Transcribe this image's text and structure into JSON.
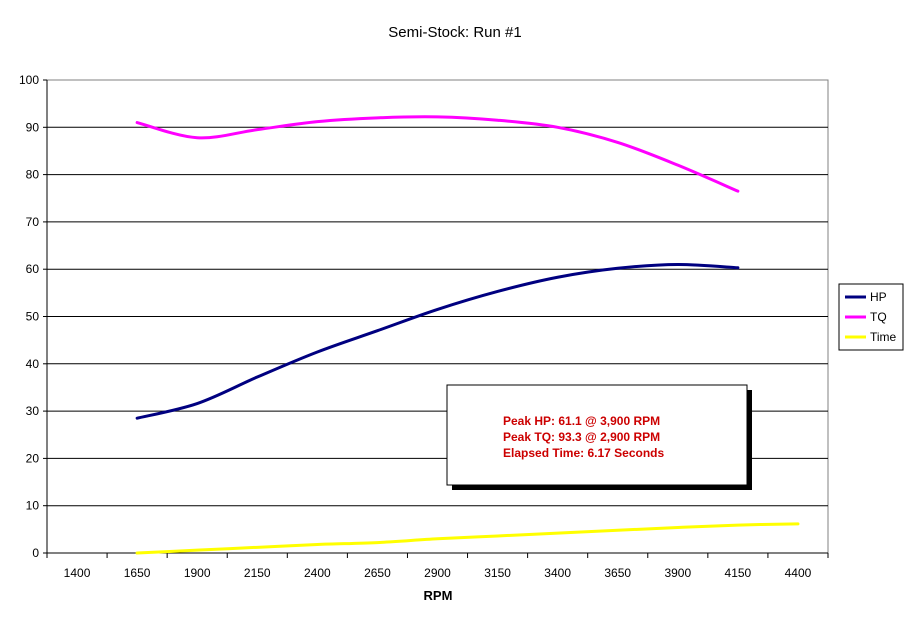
{
  "chart_data": {
    "type": "line",
    "title": "Semi-Stock: Run #1",
    "xlabel": "RPM",
    "ylabel": "",
    "categories": [
      "1400",
      "1650",
      "1900",
      "2150",
      "2400",
      "2650",
      "2900",
      "3150",
      "3400",
      "3650",
      "3900",
      "4150",
      "4400"
    ],
    "ylim": [
      0,
      100
    ],
    "yticks": [
      0,
      10,
      20,
      30,
      40,
      50,
      60,
      70,
      80,
      90,
      100
    ],
    "grid": true,
    "legend_position": "right",
    "series": [
      {
        "name": "HP",
        "color": "#000080",
        "points": [
          [
            1650,
            28.5
          ],
          [
            1900,
            31.6
          ],
          [
            2150,
            37.2
          ],
          [
            2400,
            42.5
          ],
          [
            2650,
            47.0
          ],
          [
            2900,
            51.5
          ],
          [
            3150,
            55.3
          ],
          [
            3400,
            58.3
          ],
          [
            3650,
            60.2
          ],
          [
            3900,
            61.0
          ],
          [
            4150,
            60.3
          ]
        ]
      },
      {
        "name": "TQ",
        "color": "#ff00ff",
        "points": [
          [
            1650,
            91.0
          ],
          [
            1900,
            87.8
          ],
          [
            2150,
            89.5
          ],
          [
            2400,
            91.2
          ],
          [
            2650,
            92.0
          ],
          [
            2900,
            92.2
          ],
          [
            3150,
            91.5
          ],
          [
            3400,
            90.0
          ],
          [
            3650,
            86.8
          ],
          [
            3900,
            82.0
          ],
          [
            4150,
            76.5
          ]
        ]
      },
      {
        "name": "Time",
        "color": "#ffff00",
        "points": [
          [
            1650,
            0.0
          ],
          [
            1900,
            0.6
          ],
          [
            2150,
            1.2
          ],
          [
            2400,
            1.8
          ],
          [
            2650,
            2.2
          ],
          [
            2900,
            3.0
          ],
          [
            3150,
            3.6
          ],
          [
            3400,
            4.2
          ],
          [
            3650,
            4.8
          ],
          [
            3900,
            5.4
          ],
          [
            4150,
            5.9
          ],
          [
            4400,
            6.17
          ]
        ]
      }
    ],
    "annotation": {
      "lines": [
        "Peak HP: 61.1 @ 3,900 RPM",
        "Peak TQ: 93.3 @ 2,900 RPM",
        "Elapsed Time: 6.17 Seconds"
      ],
      "color": "#cc0000"
    }
  }
}
